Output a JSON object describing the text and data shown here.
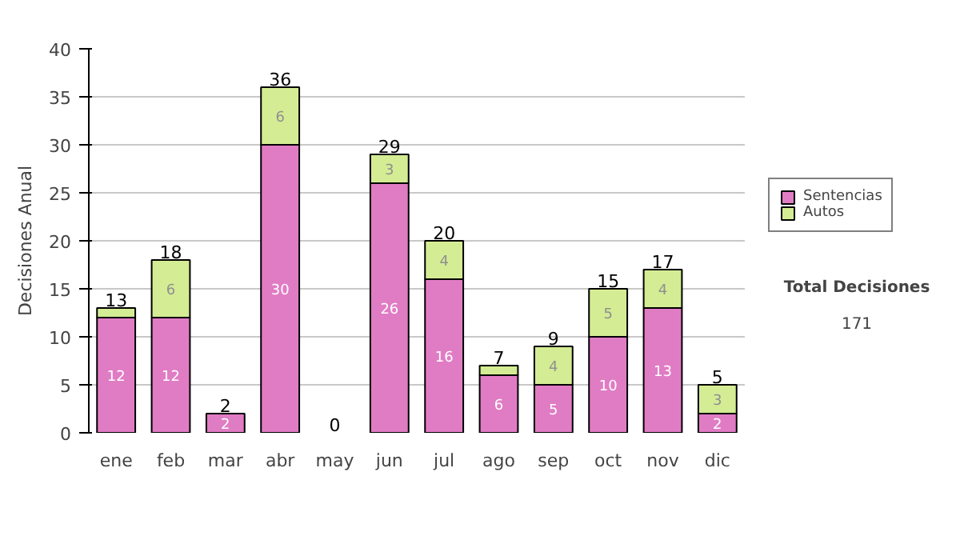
{
  "chart_data": {
    "type": "bar",
    "stacked": true,
    "ylabel": "Decisiones Anual",
    "categories": [
      "ene",
      "feb",
      "mar",
      "abr",
      "may",
      "jun",
      "jul",
      "ago",
      "sep",
      "oct",
      "nov",
      "dic"
    ],
    "series": [
      {
        "name": "Sentencias",
        "color": "#e07cc4",
        "values": [
          12,
          12,
          2,
          30,
          0,
          26,
          16,
          6,
          5,
          10,
          13,
          2
        ],
        "value_labels": [
          "12",
          "12",
          "2",
          "30",
          null,
          "26",
          "16",
          "6",
          "5",
          "10",
          "13",
          "2"
        ]
      },
      {
        "name": "Autos",
        "color": "#d4ec94",
        "values": [
          1,
          6,
          0,
          6,
          0,
          3,
          4,
          1,
          4,
          5,
          4,
          3
        ],
        "value_labels": [
          null,
          "6",
          null,
          "6",
          null,
          "3",
          "4",
          null,
          "4",
          "5",
          "4",
          "3"
        ]
      }
    ],
    "totals": [
      "13",
      "18",
      "2",
      "36",
      "0",
      "29",
      "20",
      "7",
      "9",
      "15",
      "17",
      "5"
    ],
    "ylim": [
      0,
      40
    ],
    "yticks": [
      0,
      5,
      10,
      15,
      20,
      25,
      30,
      35,
      40
    ],
    "grid": "y",
    "legend": "right",
    "annotations": [
      "Total Decisiones",
      "171"
    ]
  }
}
